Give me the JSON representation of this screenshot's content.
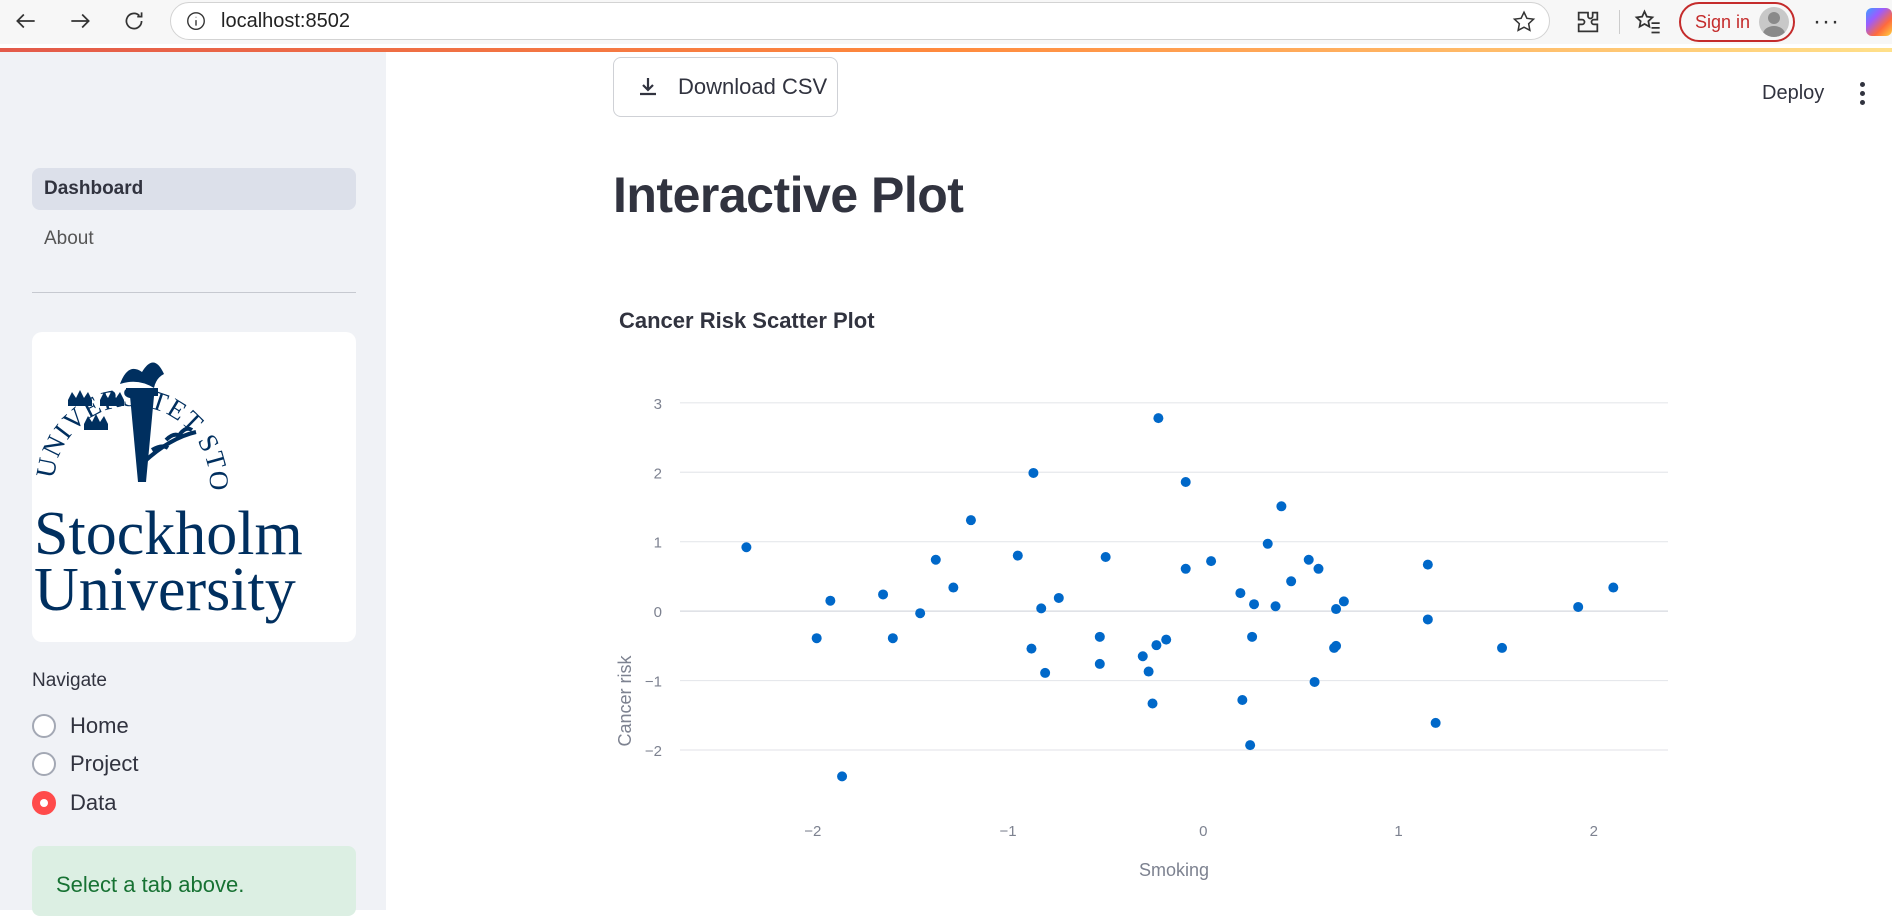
{
  "browser": {
    "url": "localhost:8502",
    "sign_in_label": "Sign in"
  },
  "header": {
    "download_label": "Download CSV",
    "deploy_label": "Deploy"
  },
  "sidebar": {
    "pages": [
      {
        "label": "Dashboard",
        "active": true
      },
      {
        "label": "About",
        "active": false
      }
    ],
    "logo": {
      "line1": "Stockholm",
      "line2": "University",
      "seal_text": "UNIVERSITET STOCKHOLMS"
    },
    "navigate_label": "Navigate",
    "radio_options": [
      {
        "label": "Home",
        "checked": false
      },
      {
        "label": "Project",
        "checked": false
      },
      {
        "label": "Data",
        "checked": true
      }
    ],
    "info_message": "Select a tab above."
  },
  "main": {
    "title": "Interactive Plot"
  },
  "chart_data": {
    "type": "scatter",
    "title": "Cancer Risk Scatter Plot",
    "xlabel": "Smoking",
    "ylabel": "Cancer risk",
    "xlim": [
      -2.68,
      2.38
    ],
    "ylim": [
      -2.72,
      3.3
    ],
    "xticks": [
      -2,
      -1,
      0,
      1,
      2
    ],
    "yticks": [
      -2,
      -1,
      0,
      1,
      2,
      3
    ],
    "xtick_labels": [
      "−2",
      "−1",
      "0",
      "1",
      "2"
    ],
    "ytick_labels": [
      "−2",
      "−1",
      "0",
      "1",
      "2",
      "3"
    ],
    "grid": "horizontal",
    "marker_color": "#0068c9",
    "points": [
      {
        "x": -2.34,
        "y": 0.92
      },
      {
        "x": -1.98,
        "y": -0.39
      },
      {
        "x": -1.91,
        "y": 0.15
      },
      {
        "x": -1.85,
        "y": -2.38
      },
      {
        "x": -1.64,
        "y": 0.24
      },
      {
        "x": -1.59,
        "y": -0.39
      },
      {
        "x": -1.45,
        "y": -0.03
      },
      {
        "x": -1.37,
        "y": 0.74
      },
      {
        "x": -1.28,
        "y": 0.34
      },
      {
        "x": -1.19,
        "y": 1.31
      },
      {
        "x": -0.95,
        "y": 0.8
      },
      {
        "x": -0.88,
        "y": -0.54
      },
      {
        "x": -0.87,
        "y": 1.99
      },
      {
        "x": -0.83,
        "y": 0.04
      },
      {
        "x": -0.81,
        "y": -0.89
      },
      {
        "x": -0.74,
        "y": 0.19
      },
      {
        "x": -0.53,
        "y": -0.37
      },
      {
        "x": -0.53,
        "y": -0.76
      },
      {
        "x": -0.5,
        "y": 0.78
      },
      {
        "x": -0.31,
        "y": -0.65
      },
      {
        "x": -0.28,
        "y": -0.87
      },
      {
        "x": -0.26,
        "y": -1.33
      },
      {
        "x": -0.24,
        "y": -0.49
      },
      {
        "x": -0.23,
        "y": 2.78
      },
      {
        "x": -0.19,
        "y": -0.41
      },
      {
        "x": -0.09,
        "y": 1.86
      },
      {
        "x": -0.09,
        "y": 0.61
      },
      {
        "x": 0.04,
        "y": 0.72
      },
      {
        "x": 0.19,
        "y": 0.26
      },
      {
        "x": 0.2,
        "y": -1.28
      },
      {
        "x": 0.24,
        "y": -1.93
      },
      {
        "x": 0.25,
        "y": -0.37
      },
      {
        "x": 0.26,
        "y": 0.1
      },
      {
        "x": 0.33,
        "y": 0.97
      },
      {
        "x": 0.37,
        "y": 0.07
      },
      {
        "x": 0.4,
        "y": 1.51
      },
      {
        "x": 0.45,
        "y": 0.43
      },
      {
        "x": 0.54,
        "y": 0.74
      },
      {
        "x": 0.57,
        "y": -1.02
      },
      {
        "x": 0.59,
        "y": 0.61
      },
      {
        "x": 0.67,
        "y": -0.53
      },
      {
        "x": 0.68,
        "y": -0.5
      },
      {
        "x": 0.68,
        "y": 0.03
      },
      {
        "x": 0.72,
        "y": 0.14
      },
      {
        "x": 1.15,
        "y": 0.67
      },
      {
        "x": 1.15,
        "y": -0.12
      },
      {
        "x": 1.19,
        "y": -1.61
      },
      {
        "x": 1.53,
        "y": -0.53
      },
      {
        "x": 1.92,
        "y": 0.06
      },
      {
        "x": 2.1,
        "y": 0.34
      }
    ]
  }
}
